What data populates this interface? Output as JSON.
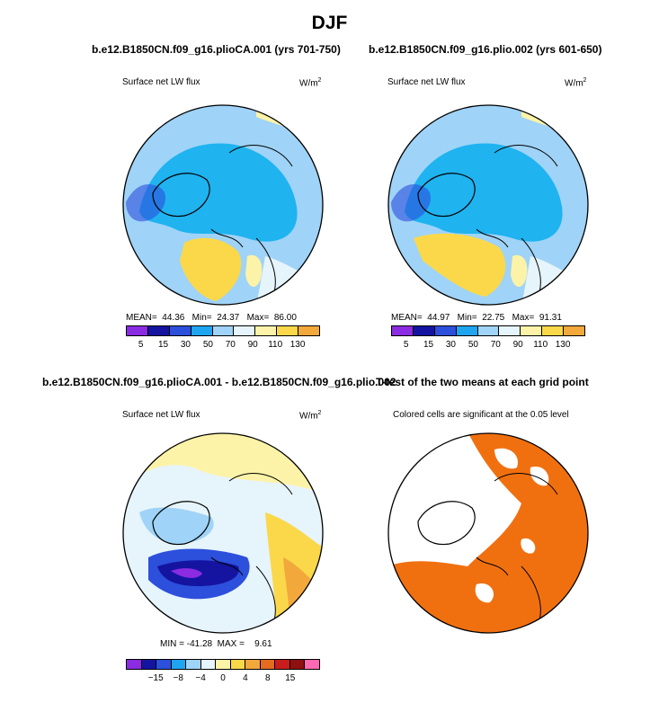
{
  "title": "DJF",
  "panels": [
    {
      "title": "b.e12.B1850CN.f09_g16.plioCA.001 (yrs 701-750)",
      "variable": "Surface net LW flux",
      "units": "W/m",
      "units_sup": "2",
      "stats": {
        "mean_label": "MEAN=",
        "mean": "44.36",
        "min_label": "Min=",
        "min": "24.37",
        "max_label": "Max=",
        "max": "86.00"
      },
      "colorbar_ticks": [
        "5",
        "15",
        "30",
        "50",
        "70",
        "90",
        "110",
        "130"
      ]
    },
    {
      "title": "b.e12.B1850CN.f09_g16.plio.002 (yrs 601-650)",
      "variable": "Surface net LW flux",
      "units": "W/m",
      "units_sup": "2",
      "stats": {
        "mean_label": "MEAN=",
        "mean": "44.97",
        "min_label": "Min=",
        "min": "22.75",
        "max_label": "Max=",
        "max": "91.31"
      },
      "colorbar_ticks": [
        "5",
        "15",
        "30",
        "50",
        "70",
        "90",
        "110",
        "130"
      ]
    },
    {
      "title": "b.e12.B1850CN.f09_g16.plioCA.001 - b.e12.B1850CN.f09_g16.plio.002",
      "variable": "Surface net LW flux",
      "units": "W/m",
      "units_sup": "2",
      "stats": {
        "min_label": "MIN =",
        "min": "-41.28",
        "max_label": "MAX =",
        "max": "9.61"
      },
      "colorbar_ticks": [
        "−15",
        "−8",
        "−4",
        "0",
        "4",
        "8",
        "15"
      ]
    },
    {
      "title": "T-test of the two means at each grid point",
      "subtitle": "Colored cells are significant at the 0.05 level"
    }
  ],
  "colors": {
    "abs_scale": [
      "#8b2be2",
      "#1414a0",
      "#2c4fdc",
      "#1fa5f0",
      "#9fd3f7",
      "#e6f4fb",
      "#fdf3a8",
      "#fbd84a",
      "#f2a83b",
      "#e56b1f",
      "#c91d1d",
      "#8e1010",
      "#ff69b4"
    ],
    "diff_scale": [
      "#8b2be2",
      "#1414a0",
      "#2c4fdc",
      "#1fa5f0",
      "#9fd3f7",
      "#e6f4fb",
      "#fdf3a8",
      "#fbd84a",
      "#f2a83b",
      "#e56b1f",
      "#c91d1d",
      "#8e1010",
      "#ff69b4"
    ],
    "significance": "#f07010",
    "ocean_base": "#9fd3f7",
    "arctic": "#1fb3f0",
    "warm": "#fbd84a"
  }
}
